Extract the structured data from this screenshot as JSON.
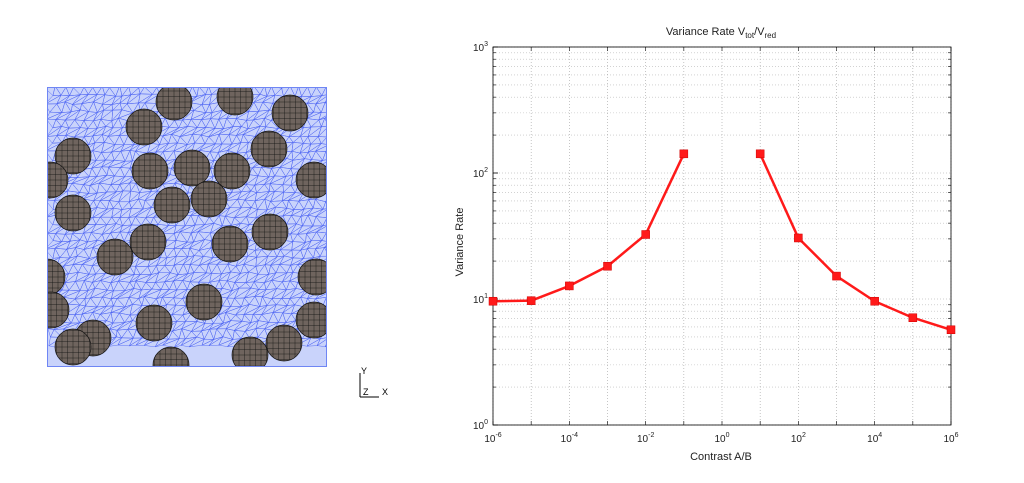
{
  "mesh_figure": {
    "axis_triad": {
      "y_label": "Y",
      "z_label": "Z",
      "x_label": "X"
    },
    "colors": {
      "mesh_fill": "#c9d3fb",
      "mesh_lines": "#4a62f2",
      "inclusion_fill": "#6f645e",
      "inclusion_lines": "#111111"
    }
  },
  "chart_data": {
    "type": "line",
    "title": {
      "main": "Variance Rate V",
      "sub1": "tot",
      "sep": "/V",
      "sub2": "red"
    },
    "xlabel": "Contrast A/B",
    "ylabel": "Variance Rate",
    "x_scale": "log",
    "y_scale": "log",
    "xlim": [
      1e-06,
      1000000.0
    ],
    "ylim": [
      1,
      1000
    ],
    "x_ticks": [
      {
        "value": 1e-06,
        "base": "10",
        "exp": "-6"
      },
      {
        "value": 0.0001,
        "base": "10",
        "exp": "-4"
      },
      {
        "value": 0.01,
        "base": "10",
        "exp": "-2"
      },
      {
        "value": 1,
        "base": "10",
        "exp": "0"
      },
      {
        "value": 100,
        "base": "10",
        "exp": "2"
      },
      {
        "value": 10000,
        "base": "10",
        "exp": "4"
      },
      {
        "value": 1000000.0,
        "base": "10",
        "exp": "6"
      }
    ],
    "y_ticks": [
      {
        "value": 1,
        "base": "10",
        "exp": "0"
      },
      {
        "value": 10,
        "base": "10",
        "exp": "1"
      },
      {
        "value": 100,
        "base": "10",
        "exp": "2"
      },
      {
        "value": 1000,
        "base": "10",
        "exp": "3"
      }
    ],
    "grid": true,
    "color": "#ff1a1a",
    "series": [
      {
        "x": [
          1e-06,
          1e-05,
          0.0001,
          0.001,
          0.01,
          0.1
        ],
        "y": [
          9.6,
          9.7,
          12.7,
          18.2,
          32.5,
          142
        ]
      },
      {
        "x": [
          10,
          100,
          1000,
          10000,
          100000,
          1000000.0
        ],
        "y": [
          142,
          30.5,
          15.2,
          9.6,
          7.1,
          5.7
        ]
      }
    ]
  }
}
